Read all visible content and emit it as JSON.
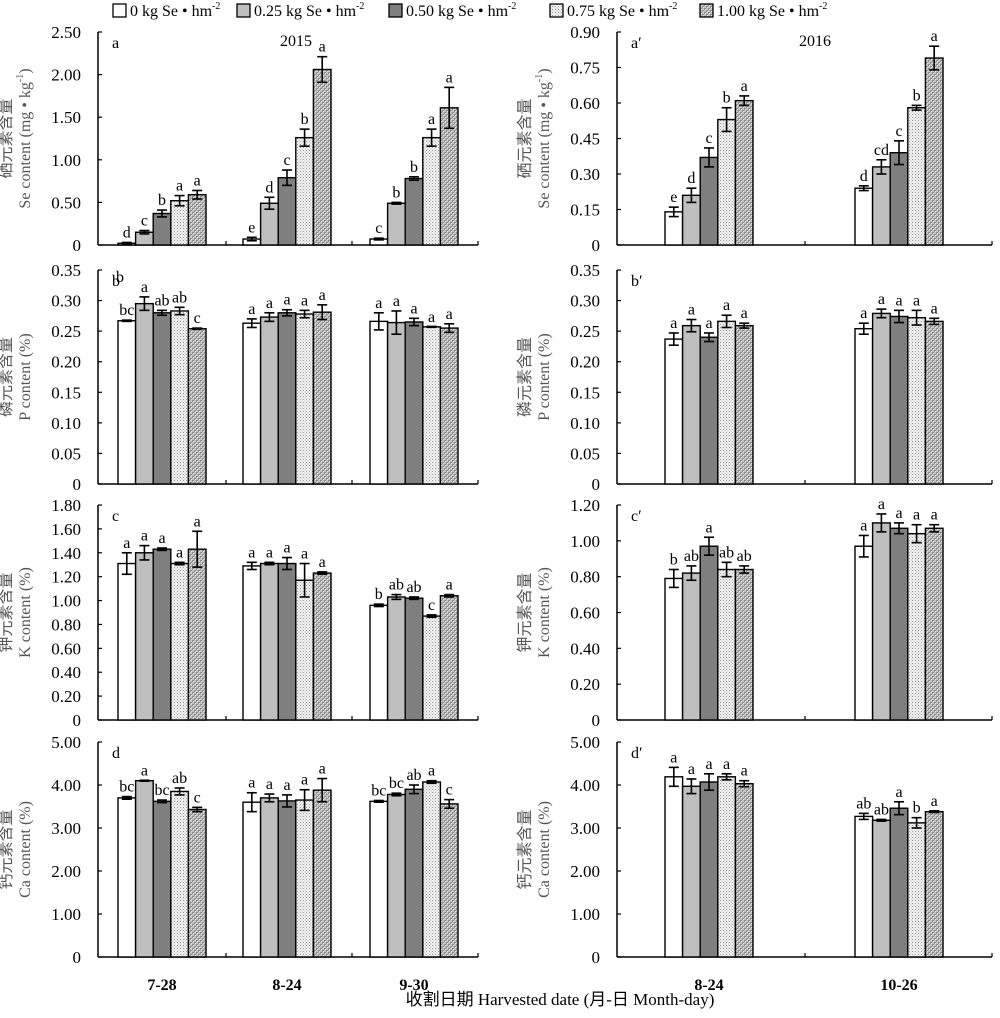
{
  "legend": {
    "items": [
      {
        "label": "0 kg Se • hm",
        "sup": "-2",
        "fill": "white"
      },
      {
        "label": "0.25 kg Se • hm",
        "sup": "-2",
        "fill": "lightgray"
      },
      {
        "label": "0.50 kg Se • hm",
        "sup": "-2",
        "fill": "darkgray"
      },
      {
        "label": "0.75 kg Se • hm",
        "sup": "-2",
        "fill": "dots"
      },
      {
        "label": "1.00 kg Se • hm",
        "sup": "-2",
        "fill": "crosshatch"
      }
    ],
    "placement": "top-center"
  },
  "xaxis": {
    "title": "收割日期 Harvested date (月-日 Month-day)",
    "left_categories": [
      "7-28",
      "8-24",
      "9-30"
    ],
    "right_categories": [
      "8-24",
      "10-26"
    ]
  },
  "colors": {
    "white": "#ffffff",
    "lightgray": "#bfbfbf",
    "darkgray": "#7f7f7f",
    "dots_bg": "#f0f0f0",
    "cross_bg": "#c8c8c8",
    "stroke": "#000000"
  },
  "chart_data": [
    {
      "panel": "a",
      "type": "bar",
      "year_label": "2015",
      "ylabel_cn": "硒元素含量",
      "ylabel_en": "Se content (mg • kg",
      "ylabel_sup": "-1",
      "ylabel_tail": ")",
      "ylim": [
        0,
        2.5
      ],
      "yticks": [
        "0",
        "0.50",
        "1.00",
        "1.50",
        "2.00",
        "2.50"
      ],
      "ystep": 0.5,
      "categories": [
        "7-28",
        "8-24",
        "9-30"
      ],
      "series_names": [
        "0",
        "0.25",
        "0.50",
        "0.75",
        "1.00"
      ],
      "values": [
        [
          0.02,
          0.15,
          0.37,
          0.52,
          0.59
        ],
        [
          0.07,
          0.49,
          0.79,
          1.26,
          2.06
        ],
        [
          0.07,
          0.49,
          0.78,
          1.26,
          1.61
        ]
      ],
      "errors": [
        [
          0.01,
          0.02,
          0.04,
          0.06,
          0.05
        ],
        [
          0.02,
          0.07,
          0.09,
          0.1,
          0.15
        ],
        [
          0.01,
          0.01,
          0.02,
          0.1,
          0.24
        ]
      ],
      "letters": [
        [
          "d",
          "c",
          "b",
          "a",
          "a"
        ],
        [
          "e",
          "d",
          "c",
          "b",
          "a"
        ],
        [
          "c",
          "b",
          "b",
          "a",
          "a"
        ]
      ]
    },
    {
      "panel": "a′",
      "type": "bar",
      "year_label": "2016",
      "ylabel_cn": "硒元素含量",
      "ylabel_en": "Se content (mg • kg",
      "ylabel_sup": "-1",
      "ylabel_tail": ")",
      "ylim": [
        0,
        0.9
      ],
      "yticks": [
        "0",
        "0.15",
        "0.30",
        "0.45",
        "0.60",
        "0.75",
        "0.90"
      ],
      "ystep": 0.15,
      "categories": [
        "8-24",
        "10-26"
      ],
      "series_names": [
        "0",
        "0.25",
        "0.50",
        "0.75",
        "1.00"
      ],
      "values": [
        [
          0.14,
          0.21,
          0.37,
          0.53,
          0.61
        ],
        [
          0.24,
          0.33,
          0.39,
          0.58,
          0.79
        ]
      ],
      "errors": [
        [
          0.02,
          0.03,
          0.04,
          0.05,
          0.02
        ],
        [
          0.01,
          0.03,
          0.05,
          0.01,
          0.05
        ]
      ],
      "letters": [
        [
          "e",
          "d",
          "c",
          "b",
          "a"
        ],
        [
          "d",
          "cd",
          "c",
          "b",
          "a"
        ]
      ]
    },
    {
      "panel": "b",
      "type": "bar",
      "ylabel_cn": "磷元素含量",
      "ylabel_en": "P content (%)",
      "ylabel_sup": "",
      "ylabel_tail": "",
      "ylim": [
        0,
        0.35
      ],
      "yticks": [
        "0",
        "0.05",
        "0.10",
        "0.15",
        "0.20",
        "0.25",
        "0.30",
        "0.35"
      ],
      "ystep": 0.05,
      "categories": [
        "7-28",
        "8-24",
        "9-30"
      ],
      "series_names": [
        "0",
        "0.25",
        "0.50",
        "0.75",
        "1.00"
      ],
      "values": [
        [
          0.267,
          0.295,
          0.28,
          0.283,
          0.254
        ],
        [
          0.263,
          0.273,
          0.28,
          0.278,
          0.281
        ],
        [
          0.266,
          0.264,
          0.265,
          0.257,
          0.255
        ]
      ],
      "errors": [
        [
          0.001,
          0.011,
          0.004,
          0.006,
          0.001
        ],
        [
          0.007,
          0.007,
          0.005,
          0.006,
          0.012
        ],
        [
          0.014,
          0.019,
          0.006,
          0.0,
          0.007
        ]
      ],
      "letters": [
        [
          "bc",
          "a",
          "ab",
          "ab",
          "c"
        ],
        [
          "a",
          "a",
          "a",
          "a",
          "a"
        ],
        [
          "a",
          "a",
          "a",
          "a",
          "a"
        ]
      ],
      "extra_label": "b"
    },
    {
      "panel": "b′",
      "type": "bar",
      "ylabel_cn": "磷元素含量",
      "ylabel_en": "P content (%)",
      "ylabel_sup": "",
      "ylabel_tail": "",
      "ylim": [
        0,
        0.35
      ],
      "yticks": [
        "0",
        "0.05",
        "0.10",
        "0.15",
        "0.20",
        "0.25",
        "0.30",
        "0.35"
      ],
      "ystep": 0.05,
      "categories": [
        "8-24",
        "10-26"
      ],
      "series_names": [
        "0",
        "0.25",
        "0.50",
        "0.75",
        "1.00"
      ],
      "values": [
        [
          0.237,
          0.259,
          0.24,
          0.266,
          0.259
        ],
        [
          0.254,
          0.279,
          0.274,
          0.272,
          0.266
        ]
      ],
      "errors": [
        [
          0.01,
          0.01,
          0.007,
          0.01,
          0.004
        ],
        [
          0.009,
          0.007,
          0.01,
          0.012,
          0.005
        ]
      ],
      "letters": [
        [
          "a",
          "a",
          "a",
          "a",
          "a"
        ],
        [
          "a",
          "a",
          "a",
          "a",
          "a"
        ]
      ]
    },
    {
      "panel": "c",
      "type": "bar",
      "ylabel_cn": "钾元素含量",
      "ylabel_en": "K content (%)",
      "ylabel_sup": "",
      "ylabel_tail": "",
      "ylim": [
        0,
        1.8
      ],
      "yticks": [
        "0",
        "0.20",
        "0.40",
        "0.60",
        "0.80",
        "1.00",
        "1.20",
        "1.40",
        "1.60",
        "1.80"
      ],
      "ystep": 0.2,
      "categories": [
        "7-28",
        "8-24",
        "9-30"
      ],
      "series_names": [
        "0",
        "0.25",
        "0.50",
        "0.75",
        "1.00"
      ],
      "values": [
        [
          1.31,
          1.4,
          1.43,
          1.31,
          1.43
        ],
        [
          1.29,
          1.31,
          1.31,
          1.17,
          1.23
        ],
        [
          0.96,
          1.03,
          1.02,
          0.87,
          1.04
        ]
      ],
      "errors": [
        [
          0.09,
          0.06,
          0.01,
          0.01,
          0.15
        ],
        [
          0.03,
          0.01,
          0.05,
          0.14,
          0.01
        ],
        [
          0.01,
          0.02,
          0.01,
          0.01,
          0.01
        ]
      ],
      "letters": [
        [
          "a",
          "a",
          "a",
          "a",
          "a"
        ],
        [
          "a",
          "a",
          "a",
          "a",
          "a"
        ],
        [
          "b",
          "ab",
          "ab",
          "c",
          "a"
        ]
      ]
    },
    {
      "panel": "c′",
      "type": "bar",
      "ylabel_cn": "钾元素含量",
      "ylabel_en": "K content (%)",
      "ylabel_sup": "",
      "ylabel_tail": "",
      "ylim": [
        0,
        1.2
      ],
      "yticks": [
        "0",
        "0.20",
        "0.40",
        "0.60",
        "0.80",
        "1.00",
        "1.20"
      ],
      "ystep": 0.2,
      "categories": [
        "8-24",
        "10-26"
      ],
      "series_names": [
        "0",
        "0.25",
        "0.50",
        "0.75",
        "1.00"
      ],
      "values": [
        [
          0.79,
          0.82,
          0.97,
          0.84,
          0.84
        ],
        [
          0.97,
          1.1,
          1.07,
          1.04,
          1.07
        ]
      ],
      "errors": [
        [
          0.05,
          0.04,
          0.05,
          0.04,
          0.02
        ],
        [
          0.06,
          0.05,
          0.03,
          0.05,
          0.02
        ]
      ],
      "letters": [
        [
          "b",
          "ab",
          "a",
          "ab",
          "ab"
        ],
        [
          "a",
          "a",
          "a",
          "a",
          "a"
        ]
      ]
    },
    {
      "panel": "d",
      "type": "bar",
      "ylabel_cn": "钙元素含量",
      "ylabel_en": "Ca content (%)",
      "ylabel_sup": "",
      "ylabel_tail": "",
      "ylim": [
        0,
        5.0
      ],
      "yticks": [
        "0",
        "1.00",
        "2.00",
        "3.00",
        "4.00",
        "5.00"
      ],
      "ystep": 1.0,
      "categories": [
        "7-28",
        "8-24",
        "9-30"
      ],
      "series_names": [
        "0",
        "0.25",
        "0.50",
        "0.75",
        "1.00"
      ],
      "values": [
        [
          3.7,
          4.1,
          3.62,
          3.85,
          3.43
        ],
        [
          3.6,
          3.7,
          3.63,
          3.65,
          3.88
        ],
        [
          3.62,
          3.78,
          3.9,
          4.07,
          3.56
        ]
      ],
      "errors": [
        [
          0.03,
          0.0,
          0.03,
          0.08,
          0.05
        ],
        [
          0.22,
          0.09,
          0.14,
          0.24,
          0.27
        ],
        [
          0.02,
          0.03,
          0.1,
          0.03,
          0.1
        ]
      ],
      "letters": [
        [
          "bc",
          "a",
          "bc",
          "ab",
          "c"
        ],
        [
          "a",
          "a",
          "a",
          "a",
          "a"
        ],
        [
          "bc",
          "bc",
          "ab",
          "a",
          "c"
        ]
      ]
    },
    {
      "panel": "d′",
      "type": "bar",
      "ylabel_cn": "钙元素含量",
      "ylabel_en": "Ca content (%)",
      "ylabel_sup": "",
      "ylabel_tail": "",
      "ylim": [
        0,
        5.0
      ],
      "yticks": [
        "0",
        "1.00",
        "2.00",
        "3.00",
        "4.00",
        "5.00"
      ],
      "ystep": 1.0,
      "categories": [
        "8-24",
        "10-26"
      ],
      "series_names": [
        "0",
        "0.25",
        "0.50",
        "0.75",
        "1.00"
      ],
      "values": [
        [
          4.19,
          3.97,
          4.07,
          4.19,
          4.03
        ],
        [
          3.27,
          3.18,
          3.46,
          3.12,
          3.38
        ]
      ],
      "errors": [
        [
          0.22,
          0.17,
          0.19,
          0.07,
          0.07
        ],
        [
          0.07,
          0.02,
          0.15,
          0.12,
          0.02
        ]
      ],
      "letters": [
        [
          "a",
          "a",
          "a",
          "a",
          "a"
        ],
        [
          "ab",
          "ab",
          "a",
          "b",
          "a"
        ]
      ]
    }
  ]
}
